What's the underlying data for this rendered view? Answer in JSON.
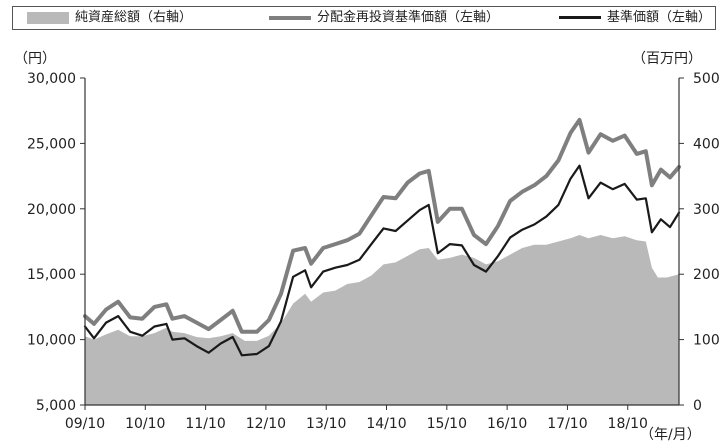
{
  "chart_data": {
    "type": "area",
    "title": "",
    "legend": [
      {
        "name": "純資産総額（右軸）",
        "style": "area",
        "color": "#b9b9b9"
      },
      {
        "name": "分配金再投資基準価額（左軸）",
        "style": "line",
        "color": "#7f7f7f"
      },
      {
        "name": "基準価額（左軸）",
        "style": "line",
        "color": "#1a1a1a"
      }
    ],
    "legend_position": "top",
    "y_left": {
      "unit": "（円）",
      "min": 5000,
      "max": 30000,
      "ticks": [
        "5,000",
        "10,000",
        "15,000",
        "20,000",
        "25,000",
        "30,000"
      ]
    },
    "y_right": {
      "unit": "（百万円）",
      "min": 0,
      "max": 500,
      "ticks": [
        "0",
        "100",
        "200",
        "300",
        "400",
        "500"
      ]
    },
    "x_axis": {
      "unit": "（年/月）",
      "min": 2009.75,
      "max": 2019.6,
      "ticks": [
        {
          "label": "09/10",
          "v": 2009.75
        },
        {
          "label": "10/10",
          "v": 2010.75
        },
        {
          "label": "11/10",
          "v": 2011.75
        },
        {
          "label": "12/10",
          "v": 2012.75
        },
        {
          "label": "13/10",
          "v": 2013.75
        },
        {
          "label": "14/10",
          "v": 2014.75
        },
        {
          "label": "15/10",
          "v": 2015.75
        },
        {
          "label": "16/10",
          "v": 2016.75
        },
        {
          "label": "17/10",
          "v": 2017.75
        },
        {
          "label": "18/10",
          "v": 2018.75
        }
      ]
    },
    "grid": false,
    "series": [
      {
        "name": "純資産総額（右軸）",
        "axis": "right",
        "points": [
          [
            2009.75,
            105
          ],
          [
            2009.9,
            100
          ],
          [
            2010.1,
            108
          ],
          [
            2010.3,
            115
          ],
          [
            2010.5,
            105
          ],
          [
            2010.7,
            105
          ],
          [
            2010.9,
            110
          ],
          [
            2011.1,
            118
          ],
          [
            2011.2,
            112
          ],
          [
            2011.4,
            110
          ],
          [
            2011.6,
            104
          ],
          [
            2011.8,
            102
          ],
          [
            2012.0,
            105
          ],
          [
            2012.2,
            110
          ],
          [
            2012.4,
            98
          ],
          [
            2012.6,
            98
          ],
          [
            2012.8,
            106
          ],
          [
            2013.0,
            125
          ],
          [
            2013.2,
            155
          ],
          [
            2013.4,
            170
          ],
          [
            2013.5,
            158
          ],
          [
            2013.7,
            172
          ],
          [
            2013.9,
            175
          ],
          [
            2014.1,
            185
          ],
          [
            2014.3,
            188
          ],
          [
            2014.5,
            198
          ],
          [
            2014.7,
            215
          ],
          [
            2014.9,
            218
          ],
          [
            2015.1,
            228
          ],
          [
            2015.3,
            238
          ],
          [
            2015.45,
            240
          ],
          [
            2015.6,
            222
          ],
          [
            2015.8,
            225
          ],
          [
            2016.0,
            230
          ],
          [
            2016.2,
            225
          ],
          [
            2016.4,
            215
          ],
          [
            2016.6,
            220
          ],
          [
            2016.8,
            230
          ],
          [
            2017.0,
            240
          ],
          [
            2017.2,
            245
          ],
          [
            2017.4,
            245
          ],
          [
            2017.6,
            250
          ],
          [
            2017.8,
            255
          ],
          [
            2017.95,
            260
          ],
          [
            2018.1,
            255
          ],
          [
            2018.3,
            260
          ],
          [
            2018.5,
            255
          ],
          [
            2018.7,
            258
          ],
          [
            2018.9,
            252
          ],
          [
            2019.05,
            250
          ],
          [
            2019.15,
            210
          ],
          [
            2019.25,
            195
          ],
          [
            2019.4,
            195
          ],
          [
            2019.6,
            200
          ]
        ]
      },
      {
        "name": "分配金再投資基準価額（左軸）",
        "axis": "left",
        "points": [
          [
            2009.75,
            11800
          ],
          [
            2009.9,
            11200
          ],
          [
            2010.1,
            12300
          ],
          [
            2010.3,
            12900
          ],
          [
            2010.5,
            11700
          ],
          [
            2010.7,
            11600
          ],
          [
            2010.9,
            12500
          ],
          [
            2011.1,
            12700
          ],
          [
            2011.2,
            11600
          ],
          [
            2011.4,
            11800
          ],
          [
            2011.6,
            11300
          ],
          [
            2011.8,
            10800
          ],
          [
            2012.0,
            11500
          ],
          [
            2012.2,
            12200
          ],
          [
            2012.35,
            10600
          ],
          [
            2012.6,
            10600
          ],
          [
            2012.8,
            11500
          ],
          [
            2013.0,
            13500
          ],
          [
            2013.2,
            16800
          ],
          [
            2013.4,
            17000
          ],
          [
            2013.5,
            15800
          ],
          [
            2013.7,
            17000
          ],
          [
            2013.9,
            17300
          ],
          [
            2014.1,
            17600
          ],
          [
            2014.3,
            18100
          ],
          [
            2014.5,
            19500
          ],
          [
            2014.7,
            20900
          ],
          [
            2014.9,
            20800
          ],
          [
            2015.1,
            22000
          ],
          [
            2015.3,
            22700
          ],
          [
            2015.45,
            22900
          ],
          [
            2015.6,
            19000
          ],
          [
            2015.8,
            20000
          ],
          [
            2016.0,
            20000
          ],
          [
            2016.2,
            18000
          ],
          [
            2016.4,
            17300
          ],
          [
            2016.6,
            18700
          ],
          [
            2016.8,
            20600
          ],
          [
            2017.0,
            21300
          ],
          [
            2017.2,
            21800
          ],
          [
            2017.4,
            22500
          ],
          [
            2017.6,
            23700
          ],
          [
            2017.8,
            25800
          ],
          [
            2017.95,
            26800
          ],
          [
            2018.1,
            24300
          ],
          [
            2018.3,
            25700
          ],
          [
            2018.5,
            25200
          ],
          [
            2018.7,
            25600
          ],
          [
            2018.9,
            24200
          ],
          [
            2019.05,
            24400
          ],
          [
            2019.15,
            21800
          ],
          [
            2019.3,
            23000
          ],
          [
            2019.45,
            22400
          ],
          [
            2019.6,
            23200
          ]
        ]
      },
      {
        "name": "基準価額（左軸）",
        "axis": "left",
        "points": [
          [
            2009.75,
            11000
          ],
          [
            2009.9,
            10100
          ],
          [
            2010.1,
            11300
          ],
          [
            2010.3,
            11800
          ],
          [
            2010.5,
            10600
          ],
          [
            2010.7,
            10300
          ],
          [
            2010.9,
            11000
          ],
          [
            2011.1,
            11200
          ],
          [
            2011.2,
            10000
          ],
          [
            2011.4,
            10100
          ],
          [
            2011.6,
            9500
          ],
          [
            2011.8,
            9000
          ],
          [
            2012.0,
            9700
          ],
          [
            2012.2,
            10200
          ],
          [
            2012.35,
            8800
          ],
          [
            2012.6,
            8900
          ],
          [
            2012.8,
            9500
          ],
          [
            2013.0,
            11400
          ],
          [
            2013.2,
            14800
          ],
          [
            2013.4,
            15300
          ],
          [
            2013.5,
            14000
          ],
          [
            2013.7,
            15200
          ],
          [
            2013.9,
            15500
          ],
          [
            2014.1,
            15700
          ],
          [
            2014.3,
            16100
          ],
          [
            2014.5,
            17300
          ],
          [
            2014.7,
            18500
          ],
          [
            2014.9,
            18300
          ],
          [
            2015.1,
            19100
          ],
          [
            2015.3,
            19900
          ],
          [
            2015.45,
            20300
          ],
          [
            2015.6,
            16600
          ],
          [
            2015.8,
            17300
          ],
          [
            2016.0,
            17200
          ],
          [
            2016.2,
            15700
          ],
          [
            2016.4,
            15200
          ],
          [
            2016.6,
            16400
          ],
          [
            2016.8,
            17800
          ],
          [
            2017.0,
            18400
          ],
          [
            2017.2,
            18800
          ],
          [
            2017.4,
            19400
          ],
          [
            2017.6,
            20300
          ],
          [
            2017.8,
            22300
          ],
          [
            2017.95,
            23300
          ],
          [
            2018.1,
            20800
          ],
          [
            2018.3,
            22000
          ],
          [
            2018.5,
            21500
          ],
          [
            2018.7,
            21900
          ],
          [
            2018.9,
            20700
          ],
          [
            2019.05,
            20800
          ],
          [
            2019.15,
            18200
          ],
          [
            2019.3,
            19200
          ],
          [
            2019.45,
            18600
          ],
          [
            2019.6,
            19700
          ]
        ]
      }
    ]
  }
}
